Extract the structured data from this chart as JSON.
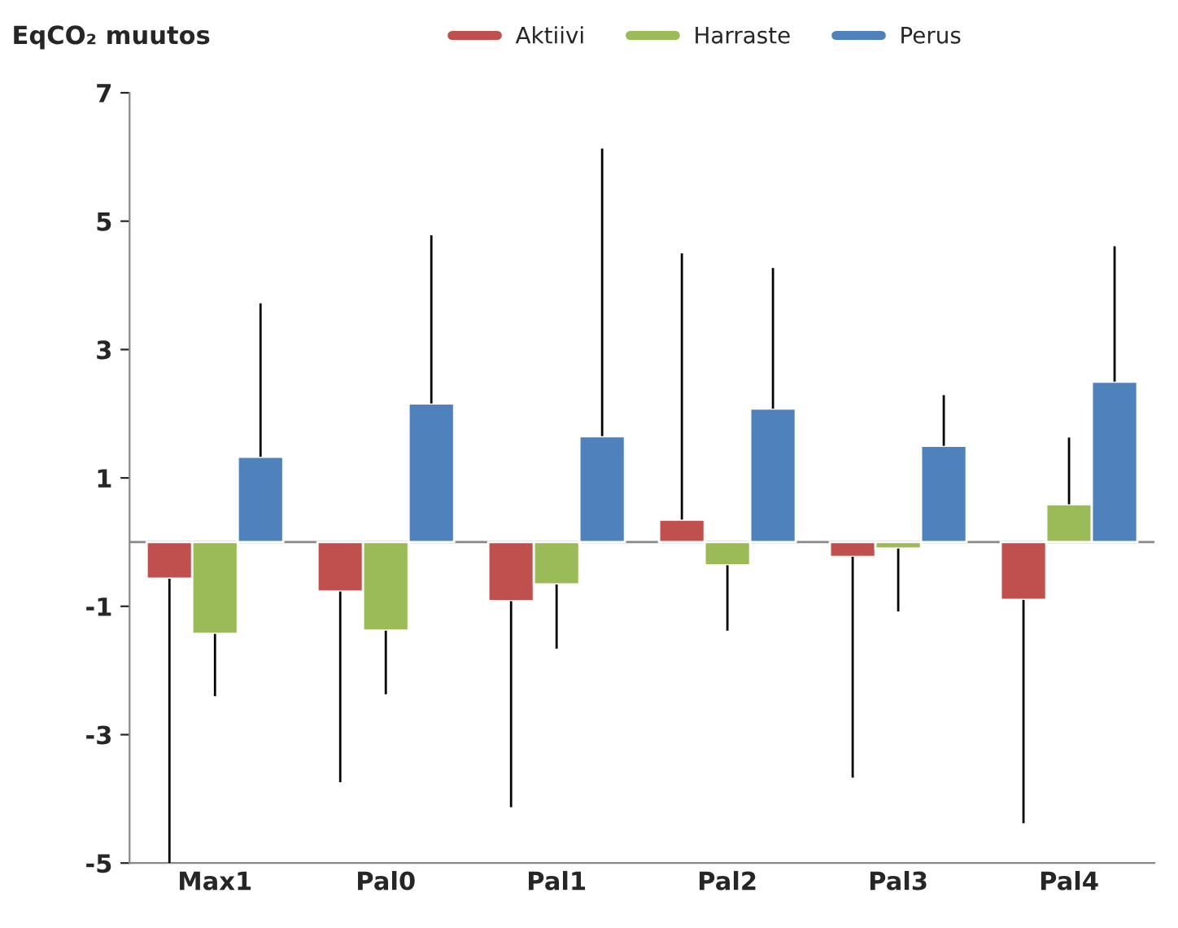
{
  "chart_data": {
    "type": "bar",
    "ylabel": "EqCO₂ muutos",
    "categories": [
      "Max1",
      "Pal0",
      "Pal1",
      "Pal2",
      "Pal3",
      "Pal4"
    ],
    "series": [
      {
        "name": "Aktiivi",
        "color": "#c0504d",
        "values": [
          -0.57,
          -0.77,
          -0.92,
          0.35,
          -0.23,
          -0.9
        ],
        "errors": [
          [
            -5.0,
            -0.57
          ],
          [
            -3.74,
            -0.77
          ],
          [
            -4.13,
            -0.92
          ],
          [
            0.35,
            4.5
          ],
          [
            -3.67,
            -0.23
          ],
          [
            -4.38,
            -0.9
          ]
        ]
      },
      {
        "name": "Harraste",
        "color": "#9bbb59",
        "values": [
          -1.43,
          -1.38,
          -0.66,
          -0.36,
          -0.1,
          0.59
        ],
        "errors": [
          [
            -2.4,
            -1.43
          ],
          [
            -2.37,
            -1.38
          ],
          [
            -1.66,
            -0.66
          ],
          [
            -1.38,
            -0.36
          ],
          [
            -1.08,
            -0.1
          ],
          [
            0.59,
            1.63
          ]
        ]
      },
      {
        "name": "Perus",
        "color": "#4f81bd",
        "values": [
          1.33,
          2.16,
          1.65,
          2.08,
          1.5,
          2.5
        ],
        "errors": [
          [
            1.33,
            3.72
          ],
          [
            2.16,
            4.78
          ],
          [
            1.65,
            6.13
          ],
          [
            2.08,
            4.27
          ],
          [
            1.5,
            2.29
          ],
          [
            2.5,
            4.61
          ]
        ]
      }
    ],
    "ylim": [
      -5,
      7
    ],
    "yticks": [
      -5,
      -3,
      -1,
      1,
      3,
      5,
      7
    ],
    "grid": false,
    "legend": "top"
  }
}
